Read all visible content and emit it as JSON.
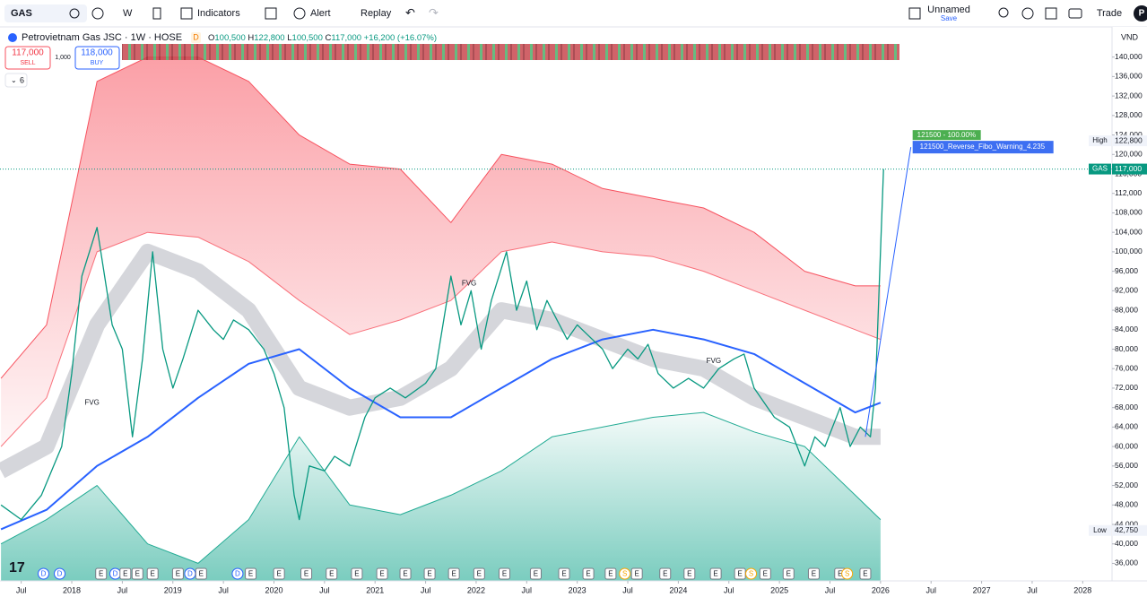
{
  "toolbar": {
    "symbol": "GAS",
    "interval": "W",
    "indicators": "Indicators",
    "alert": "Alert",
    "replay": "Replay",
    "layout_name": "Unnamed",
    "layout_status": "Save",
    "trade": "Trade",
    "avatar": "P"
  },
  "legend": {
    "title": "Petrovietnam Gas JSC · 1W · HOSE",
    "flag": "D",
    "open_label": "O",
    "open": "100,500",
    "high_label": "H",
    "high": "122,800",
    "low_label": "L",
    "low": "100,500",
    "close_label": "C",
    "close": "117,000",
    "change": "+16,200 (+16.07%)",
    "sell_price": "117,000",
    "sell": "SELL",
    "spread": "1,000",
    "buy_price": "118,000",
    "buy": "BUY",
    "indicator_count": "6"
  },
  "chart_data": {
    "type": "line",
    "currency": "VND",
    "x": [
      2017.3,
      2017.5,
      2017.7,
      2017.9,
      2018.0,
      2018.1,
      2018.25,
      2018.4,
      2018.5,
      2018.6,
      2018.7,
      2018.8,
      2018.9,
      2019.0,
      2019.1,
      2019.25,
      2019.4,
      2019.5,
      2019.6,
      2019.75,
      2019.9,
      2020.0,
      2020.1,
      2020.2,
      2020.25,
      2020.35,
      2020.5,
      2020.6,
      2020.75,
      2020.9,
      2021.0,
      2021.15,
      2021.3,
      2021.5,
      2021.6,
      2021.75,
      2021.85,
      2021.95,
      2022.05,
      2022.15,
      2022.3,
      2022.4,
      2022.5,
      2022.6,
      2022.7,
      2022.8,
      2022.9,
      2023.0,
      2023.1,
      2023.25,
      2023.35,
      2023.5,
      2023.6,
      2023.7,
      2023.8,
      2023.95,
      2024.1,
      2024.25,
      2024.4,
      2024.55,
      2024.65,
      2024.75,
      2024.85,
      2024.95,
      2025.1,
      2025.25,
      2025.35,
      2025.45,
      2025.6,
      2025.7,
      2025.8,
      2025.9,
      2025.95,
      2026.0,
      2026.03
    ],
    "series": [
      {
        "color": "#089981",
        "values": [
          48000,
          45000,
          50000,
          60000,
          75000,
          95000,
          105000,
          85000,
          80000,
          62000,
          78000,
          100000,
          80000,
          72000,
          78000,
          88000,
          84000,
          82000,
          86000,
          84000,
          80000,
          75000,
          68000,
          50000,
          45000,
          56000,
          55000,
          58000,
          56000,
          66000,
          70000,
          72000,
          70000,
          73000,
          76000,
          95000,
          85000,
          92000,
          80000,
          90000,
          100000,
          88000,
          94000,
          84000,
          90000,
          86000,
          82000,
          85000,
          83000,
          80000,
          76000,
          80000,
          78000,
          81000,
          75000,
          72000,
          74000,
          72000,
          76000,
          78000,
          79000,
          72000,
          69000,
          66000,
          64000,
          56000,
          62000,
          60000,
          68000,
          60000,
          64000,
          62000,
          72000,
          100500,
          117000
        ]
      }
    ],
    "bands": {
      "x": [
        2017.3,
        2017.75,
        2018.25,
        2018.75,
        2019.25,
        2019.75,
        2020.25,
        2020.75,
        2021.25,
        2021.75,
        2022.25,
        2022.75,
        2023.25,
        2023.75,
        2024.25,
        2024.75,
        2025.25,
        2025.75,
        2026.0
      ],
      "series": [
        {
          "color": "#f7525f",
          "values": [
            74000,
            85000,
            135000,
            140000,
            140000,
            135000,
            124000,
            118000,
            117000,
            106000,
            120000,
            118000,
            113000,
            111000,
            109000,
            104000,
            96000,
            93000,
            93000
          ]
        },
        {
          "color": "#f7525f",
          "values": [
            60000,
            70000,
            100000,
            104000,
            103000,
            98000,
            90000,
            83000,
            86000,
            90000,
            100000,
            102000,
            100000,
            99000,
            96000,
            92000,
            88000,
            84000,
            82000
          ]
        },
        {
          "color": "#b2b5be",
          "values": [
            55000,
            60000,
            85000,
            100000,
            96000,
            88000,
            72000,
            68000,
            70000,
            76000,
            88000,
            86000,
            82000,
            78000,
            76000,
            70000,
            66000,
            62000,
            62000
          ]
        },
        {
          "color": "#2962ff",
          "values": [
            43000,
            47000,
            56000,
            62000,
            70000,
            77000,
            80000,
            72000,
            66000,
            66000,
            72000,
            78000,
            82000,
            84000,
            82000,
            79000,
            73000,
            67000,
            69000
          ]
        },
        {
          "color": "#22ab94",
          "values": [
            40000,
            45000,
            52000,
            40000,
            36000,
            45000,
            62000,
            48000,
            46000,
            50000,
            55000,
            62000,
            64000,
            66000,
            67000,
            63000,
            60000,
            50000,
            45000
          ]
        }
      ]
    },
    "price_labels": [
      {
        "label": "High",
        "value": 122800,
        "value_label": "122,800",
        "color": "#131722"
      },
      {
        "label": "GAS",
        "value": 117000,
        "value_label": "117,000",
        "color": "#089981"
      },
      {
        "label": "Low",
        "value": 42750,
        "value_label": "42,750",
        "color": "#131722"
      }
    ],
    "annotations": [
      {
        "text": "FVG",
        "x": 2018.2,
        "y": 69000
      },
      {
        "text": "FVG",
        "x": 2021.93,
        "y": 93500
      },
      {
        "text": "FVG",
        "x": 2024.35,
        "y": 77500
      }
    ],
    "fib": {
      "level": "121500 - 100.00%",
      "label": "121500_Reverse_Fibo_Warning_4.235",
      "from": [
        2025.85,
        62000
      ],
      "to": [
        2026.3,
        121500
      ]
    },
    "events": [
      {
        "x": 2017.72,
        "label": "D"
      },
      {
        "x": 2017.88,
        "label": "D"
      },
      {
        "x": 2018.29,
        "label": "E"
      },
      {
        "x": 2018.43,
        "label": "D"
      },
      {
        "x": 2018.53,
        "label": "E"
      },
      {
        "x": 2018.65,
        "label": "E"
      },
      {
        "x": 2018.8,
        "label": "E"
      },
      {
        "x": 2019.05,
        "label": "E"
      },
      {
        "x": 2019.17,
        "label": "D"
      },
      {
        "x": 2019.28,
        "label": "E"
      },
      {
        "x": 2019.64,
        "label": "D"
      },
      {
        "x": 2019.77,
        "label": "E"
      },
      {
        "x": 2020.05,
        "label": "E"
      },
      {
        "x": 2020.32,
        "label": "E"
      },
      {
        "x": 2020.57,
        "label": "E"
      },
      {
        "x": 2020.82,
        "label": "E"
      },
      {
        "x": 2021.07,
        "label": "E"
      },
      {
        "x": 2021.3,
        "label": "E"
      },
      {
        "x": 2021.54,
        "label": "E"
      },
      {
        "x": 2021.78,
        "label": "E"
      },
      {
        "x": 2022.03,
        "label": "E"
      },
      {
        "x": 2022.28,
        "label": "E"
      },
      {
        "x": 2022.59,
        "label": "E"
      },
      {
        "x": 2022.87,
        "label": "E"
      },
      {
        "x": 2023.11,
        "label": "E"
      },
      {
        "x": 2023.33,
        "label": "E"
      },
      {
        "x": 2023.47,
        "label": "S"
      },
      {
        "x": 2023.59,
        "label": "E"
      },
      {
        "x": 2023.87,
        "label": "E"
      },
      {
        "x": 2024.11,
        "label": "E"
      },
      {
        "x": 2024.37,
        "label": "E"
      },
      {
        "x": 2024.61,
        "label": "E"
      },
      {
        "x": 2024.72,
        "label": "S"
      },
      {
        "x": 2024.86,
        "label": "E"
      },
      {
        "x": 2025.09,
        "label": "E"
      },
      {
        "x": 2025.34,
        "label": "E"
      },
      {
        "x": 2025.6,
        "label": "E"
      },
      {
        "x": 2025.67,
        "label": "S"
      },
      {
        "x": 2025.85,
        "label": "E"
      }
    ],
    "xlim": [
      2017.29,
      2028.29
    ],
    "xticks": [
      {
        "value": 2017.5,
        "label": "Jul"
      },
      2018,
      {
        "value": 2018.5,
        "label": "Jul"
      },
      2019,
      {
        "value": 2019.5,
        "label": "Jul"
      },
      2020,
      {
        "value": 2020.5,
        "label": "Jul"
      },
      2021,
      {
        "value": 2021.5,
        "label": "Jul"
      },
      2022,
      {
        "value": 2022.5,
        "label": "Jul"
      },
      2023,
      {
        "value": 2023.5,
        "label": "Jul"
      },
      2024,
      {
        "value": 2024.5,
        "label": "Jul"
      },
      2025,
      {
        "value": 2025.5,
        "label": "Jul"
      },
      2026,
      {
        "value": 2026.5,
        "label": "Jul"
      },
      2027,
      {
        "value": 2027.5,
        "label": "Jul"
      },
      2028
    ],
    "ylim": [
      32400,
      146200
    ],
    "yticks": [
      {
        "value": 36000,
        "label": "36,000"
      },
      {
        "value": 40000,
        "label": "40,000"
      },
      {
        "value": 44000,
        "label": "44,000"
      },
      {
        "value": 48000,
        "label": "48,000"
      },
      {
        "value": 52000,
        "label": "52,000"
      },
      {
        "value": 56000,
        "label": "56,000"
      },
      {
        "value": 60000,
        "label": "60,000"
      },
      {
        "value": 64000,
        "label": "64,000"
      },
      {
        "value": 68000,
        "label": "68,000"
      },
      {
        "value": 72000,
        "label": "72,000"
      },
      {
        "value": 76000,
        "label": "76,000"
      },
      {
        "value": 80000,
        "label": "80,000"
      },
      {
        "value": 84000,
        "label": "84,000"
      },
      {
        "value": 88000,
        "label": "88,000"
      },
      {
        "value": 92000,
        "label": "92,000"
      },
      {
        "value": 96000,
        "label": "96,000"
      },
      {
        "value": 100000,
        "label": "100,000"
      },
      {
        "value": 104000,
        "label": "104,000"
      },
      {
        "value": 108000,
        "label": "108,000"
      },
      {
        "value": 112000,
        "label": "112,000"
      },
      {
        "value": 116000,
        "label": "116,000"
      },
      {
        "value": 120000,
        "label": "120,000"
      },
      {
        "value": 124000,
        "label": "124,000"
      },
      {
        "value": 128000,
        "label": "128,000"
      },
      {
        "value": 132000,
        "label": "132,000"
      },
      {
        "value": 136000,
        "label": "136,000"
      },
      {
        "value": 140000,
        "label": "140,000"
      }
    ]
  }
}
